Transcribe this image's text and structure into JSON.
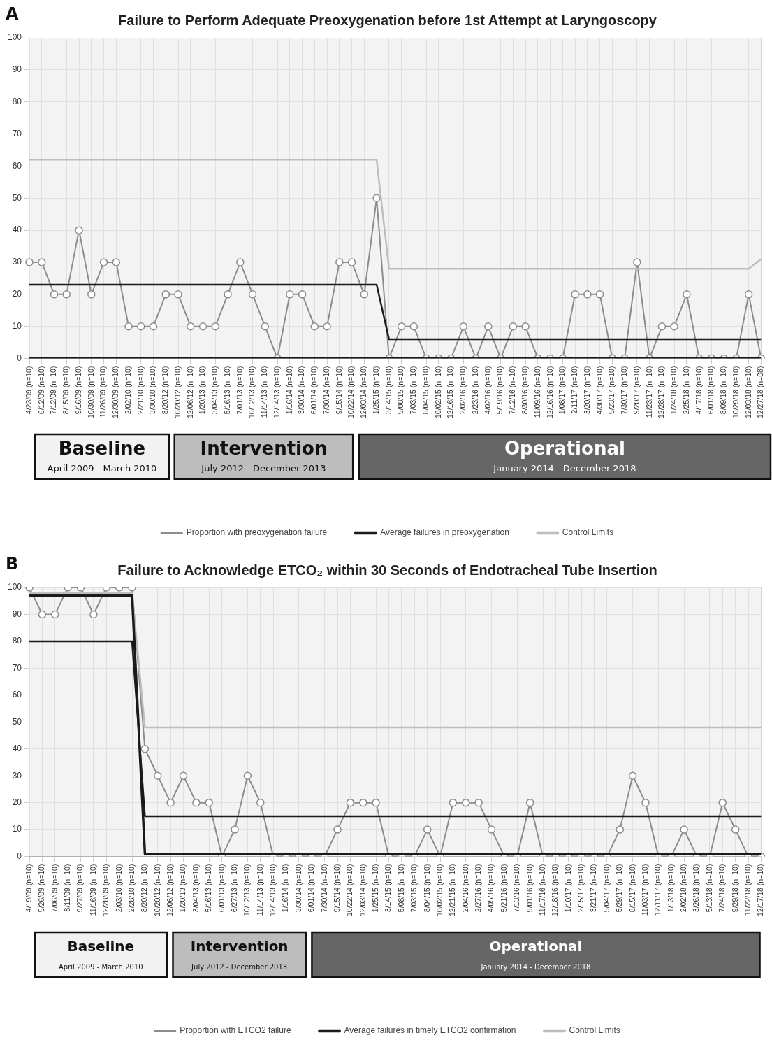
{
  "chart_data": [
    {
      "type": "line",
      "title": "Failure to Perform Adequate Preoxygenation before 1st Attempt at Laryngoscopy",
      "categories": [
        "4/23/09 (n=10)",
        "6/12/09 (n=10)",
        "7/12/09 (n=10)",
        "8/15/09 (n=10)",
        "9/16/09 (n=10)",
        "10/30/09 (n=10)",
        "11/26/09 (n=10)",
        "12/30/09 (n=10)",
        "2/02/10 (n=10)",
        "2/21/10 (n=10)",
        "3/30/10 (n=10)",
        "8/20/12 (n=10)",
        "10/20/12 (n=10)",
        "12/06/12 (n=10)",
        "1/20/13 (n=10)",
        "3/04/13 (n=10)",
        "5/16/13 (n=10)",
        "7/01/13 (n=10)",
        "10/12/13 (n=10)",
        "11/14/13 (n=10)",
        "12/14/13 (n=10)",
        "1/16/14 (n=10)",
        "3/30/14 (n=10)",
        "6/01/14 (n=10)",
        "7/30/14 (n=10)",
        "9/15/14 (n=10)",
        "10/22/14 (n=10)",
        "12/03/14 (n=10)",
        "1/25/15 (n=10)",
        "3/14/15 (n=10)",
        "5/08/15 (n=10)",
        "7/03/15 (n=10)",
        "8/04/15 (n=10)",
        "10/02/15 (n=10)",
        "12/16/15 (n=10)",
        "2/02/16 (n=10)",
        "2/23/16 (n=10)",
        "4/02/16 (n=10)",
        "5/19/16 (n=10)",
        "7/12/16 (n=10)",
        "8/30/16 (n=10)",
        "11/09/16 (n=10)",
        "12/16/16 (n=10)",
        "1/08/17 (n=10)",
        "2/11/17 (n=10)",
        "3/20/17 (n=10)",
        "4/30/17 (n=10)",
        "5/23/17 (n=10)",
        "7/30/17 (n=10)",
        "9/20/17 (n=10)",
        "11/23/17 (n=10)",
        "12/28/17 (n=10)",
        "1/24/18 (n=10)",
        "2/25/18 (n=10)",
        "4/17/18 (n=10)",
        "6/01/18 (n=10)",
        "8/09/18 (n=10)",
        "10/29/18 (n=10)",
        "12/03/18 (n=10)",
        "12/27/18 (n=08)"
      ],
      "series": [
        {
          "name": "Proportion with preoxygenation failure",
          "color": "#8c8c8c",
          "marker": "circle",
          "values": [
            30,
            30,
            20,
            20,
            40,
            20,
            30,
            30,
            10,
            10,
            10,
            20,
            20,
            10,
            10,
            10,
            20,
            30,
            20,
            10,
            0,
            20,
            20,
            10,
            10,
            30,
            30,
            20,
            50,
            0,
            10,
            10,
            0,
            0,
            0,
            10,
            0,
            10,
            0,
            10,
            10,
            0,
            0,
            0,
            20,
            20,
            20,
            0,
            0,
            30,
            0,
            10,
            10,
            20,
            0,
            0,
            0,
            0,
            20,
            0
          ]
        },
        {
          "name": "Average failures in preoxygenation",
          "color": "#1a1a1a",
          "marker": "none",
          "values": [
            23,
            23,
            23,
            23,
            23,
            23,
            23,
            23,
            23,
            23,
            23,
            23,
            23,
            23,
            23,
            23,
            23,
            23,
            23,
            23,
            23,
            23,
            23,
            23,
            23,
            23,
            23,
            23,
            23,
            6,
            6,
            6,
            6,
            6,
            6,
            6,
            6,
            6,
            6,
            6,
            6,
            6,
            6,
            6,
            6,
            6,
            6,
            6,
            6,
            6,
            6,
            6,
            6,
            6,
            6,
            6,
            6,
            6,
            6,
            6
          ]
        },
        {
          "name": "Control Limits",
          "color": "#bdbdbd",
          "marker": "none",
          "values": [
            62,
            62,
            62,
            62,
            62,
            62,
            62,
            62,
            62,
            62,
            62,
            62,
            62,
            62,
            62,
            62,
            62,
            62,
            62,
            62,
            62,
            62,
            62,
            62,
            62,
            62,
            62,
            62,
            62,
            28,
            28,
            28,
            28,
            28,
            28,
            28,
            28,
            28,
            28,
            28,
            28,
            28,
            28,
            28,
            28,
            28,
            28,
            28,
            28,
            28,
            28,
            28,
            28,
            28,
            28,
            28,
            28,
            28,
            28,
            31
          ]
        },
        {
          "color": "#1a1a1a",
          "marker": "none",
          "values": [
            0,
            0,
            0,
            0,
            0,
            0,
            0,
            0,
            0,
            0,
            0,
            0,
            0,
            0,
            0,
            0,
            0,
            0,
            0,
            0,
            0,
            0,
            0,
            0,
            0,
            0,
            0,
            0,
            0,
            0,
            0,
            0,
            0,
            0,
            0,
            0,
            0,
            0,
            0,
            0,
            0,
            0,
            0,
            0,
            0,
            0,
            0,
            0,
            0,
            0,
            0,
            0,
            0,
            0,
            0,
            0,
            0,
            0,
            0,
            0
          ]
        }
      ],
      "ylim": [
        0,
        100
      ],
      "yticks": [
        0,
        10,
        20,
        30,
        40,
        50,
        60,
        70,
        80,
        90,
        100
      ],
      "grid": true,
      "legend": "bottom",
      "annotations": [
        "A",
        "Baseline",
        "April 2009 - March 2010",
        "Intervention",
        "July 2012 - December 2013",
        "Operational",
        "January 2014 - December 2018"
      ]
    },
    {
      "type": "line",
      "title": "Failure to Acknowledge ETCO₂ within 30 Seconds of Endotracheal Tube Insertion",
      "categories": [
        "4/19/09 (n=10)",
        "5/26/09 (n=10)",
        "7/06/09 (n=10)",
        "8/11/09 (n=10)",
        "9/27/09 (n=10)",
        "11/16/09 (n=10)",
        "12/28/09 (n=10)",
        "2/03/10 (n=10)",
        "2/28/10 (n=10)",
        "8/20/12 (n=10)",
        "10/20/12 (n=10)",
        "12/06/12 (n=10)",
        "1/20/13 (n=10)",
        "3/04/13 (n=10)",
        "5/16/13 (n=10)",
        "6/01/13 (n=10)",
        "6/27/13 (n=10)",
        "10/12/13 (n=10)",
        "11/14/13 (n=10)",
        "12/14/13 (n=10)",
        "1/16/14 (n=10)",
        "3/30/14 (n=10)",
        "6/01/14 (n=10)",
        "7/30/14 (n=10)",
        "9/15/14 (n=10)",
        "10/22/14 (n=10)",
        "12/03/14 (n=10)",
        "1/25/15 (n=10)",
        "3/14/15 (n=10)",
        "5/08/15 (n=10)",
        "7/03/15 (n=10)",
        "8/04/15 (n=10)",
        "10/02/15 (n=10)",
        "12/21/15 (n=10)",
        "2/04/16 (n=10)",
        "2/27/16 (n=10)",
        "4/05/16 (n=10)",
        "5/21/16 (n=10)",
        "7/13/16 (n=10)",
        "9/01/16 (n=10)",
        "11/17/16 (n=10)",
        "12/18/16 (n=10)",
        "1/10/17 (n=10)",
        "2/15/17 (n=10)",
        "3/21/17 (n=10)",
        "5/04/17 (n=10)",
        "5/29/17 (n=10)",
        "8/15/17 (n=10)",
        "11/03/17 (n=10)",
        "12/11/17 (n=10)",
        "1/13/18 (n=10)",
        "2/02/18 (n=10)",
        "3/26/18 (n=10)",
        "5/13/18 (n=10)",
        "7/24/18 (n=10)",
        "9/29/18 (n=10)",
        "11/22/18 (n=10)",
        "12/17/18 (n=10)"
      ],
      "series": [
        {
          "name": "Proportion with ETCO2 failure",
          "color": "#8c8c8c",
          "marker": "circle",
          "values": [
            100,
            90,
            90,
            100,
            100,
            90,
            100,
            100,
            100,
            40,
            30,
            20,
            30,
            20,
            20,
            0,
            10,
            30,
            20,
            0,
            0,
            0,
            0,
            0,
            10,
            20,
            20,
            20,
            0,
            0,
            0,
            10,
            0,
            20,
            20,
            20,
            10,
            0,
            0,
            20,
            0,
            0,
            0,
            0,
            0,
            0,
            10,
            30,
            20,
            0,
            0,
            10,
            0,
            0,
            20,
            10,
            0,
            0
          ]
        },
        {
          "name": "Average failures in timely ETCO2 confirmation",
          "color": "#1a1a1a",
          "marker": "none",
          "values": [
            80,
            80,
            80,
            80,
            80,
            80,
            80,
            80,
            80,
            15,
            15,
            15,
            15,
            15,
            15,
            15,
            15,
            15,
            15,
            15,
            15,
            15,
            15,
            15,
            15,
            15,
            15,
            15,
            15,
            15,
            15,
            15,
            15,
            15,
            15,
            15,
            15,
            15,
            15,
            15,
            15,
            15,
            15,
            15,
            15,
            15,
            15,
            15,
            15,
            15,
            15,
            15,
            15,
            15,
            15,
            15,
            15,
            15
          ]
        },
        {
          "name": "Control Limits",
          "color": "#bdbdbd",
          "marker": "none",
          "values": [
            98,
            98,
            98,
            98,
            98,
            98,
            98,
            98,
            98,
            48,
            48,
            48,
            48,
            48,
            48,
            48,
            48,
            48,
            48,
            48,
            48,
            48,
            48,
            48,
            48,
            48,
            48,
            48,
            48,
            48,
            48,
            48,
            48,
            48,
            48,
            48,
            48,
            48,
            48,
            48,
            48,
            48,
            48,
            48,
            48,
            48,
            48,
            48,
            48,
            48,
            48,
            48,
            48,
            48,
            48,
            48,
            48,
            48
          ]
        },
        {
          "color": "#1a1a1a",
          "marker": "none",
          "values": [
            97,
            97,
            97,
            97,
            97,
            97,
            97,
            97,
            97,
            1,
            1,
            1,
            1,
            1,
            1,
            1,
            1,
            1,
            1,
            1,
            1,
            1,
            1,
            1,
            1,
            1,
            1,
            1,
            1,
            1,
            1,
            1,
            1,
            1,
            1,
            1,
            1,
            1,
            1,
            1,
            1,
            1,
            1,
            1,
            1,
            1,
            1,
            1,
            1,
            1,
            1,
            1,
            1,
            1,
            1,
            1,
            1,
            1
          ]
        }
      ],
      "ylim": [
        0,
        100
      ],
      "yticks": [
        0,
        10,
        20,
        30,
        40,
        50,
        60,
        70,
        80,
        90,
        100
      ],
      "grid": true,
      "legend": "bottom",
      "annotations": [
        "B",
        "Baseline",
        "April 2009 - March 2010",
        "Intervention",
        "July 2012 - December 2013",
        "Operational",
        "January 2014 - December 2018"
      ]
    }
  ]
}
